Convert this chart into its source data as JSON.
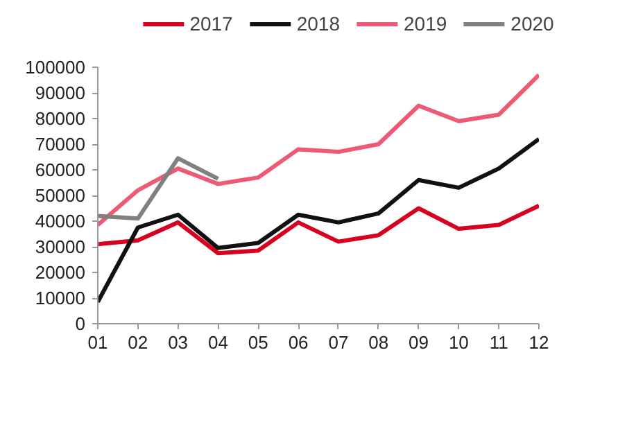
{
  "chart_data": {
    "type": "line",
    "categories": [
      "01",
      "02",
      "03",
      "04",
      "05",
      "06",
      "07",
      "08",
      "09",
      "10",
      "11",
      "12"
    ],
    "series": [
      {
        "name": "2017",
        "color": "#d7001f",
        "values": [
          31000,
          32500,
          39500,
          27500,
          28500,
          39500,
          32000,
          34500,
          45000,
          37000,
          38500,
          46000
        ]
      },
      {
        "name": "2018",
        "color": "#111111",
        "values": [
          8500,
          37500,
          42500,
          29500,
          31500,
          42500,
          39500,
          43000,
          56000,
          53000,
          60500,
          72000
        ]
      },
      {
        "name": "2019",
        "color": "#ec5a76",
        "values": [
          38500,
          52000,
          60500,
          54500,
          57000,
          68000,
          67000,
          70000,
          85000,
          79000,
          81500,
          97000
        ]
      },
      {
        "name": "2020",
        "color": "#808080",
        "values": [
          42000,
          41000,
          64500,
          56500,
          null,
          null,
          null,
          null,
          null,
          null,
          null,
          null
        ]
      }
    ],
    "ylim": [
      0,
      100000
    ],
    "yticks": [
      0,
      10000,
      20000,
      30000,
      40000,
      50000,
      60000,
      70000,
      80000,
      90000,
      100000
    ],
    "grid": false,
    "legend": "top",
    "marker": "none",
    "line_style": "solid"
  }
}
